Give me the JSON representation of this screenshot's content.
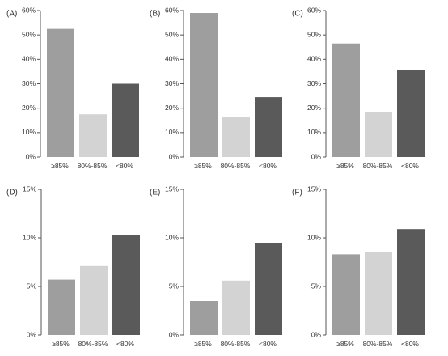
{
  "chart_data": [
    {
      "type": "bar",
      "panel_label": "(A)",
      "categories": [
        "≥85%",
        "80%-85%",
        "<80%"
      ],
      "values": [
        52.5,
        17.5,
        30.0
      ],
      "ylim": [
        0,
        60
      ],
      "yticks": [
        0,
        10,
        20,
        30,
        40,
        50,
        60
      ],
      "yticklabels": [
        "0%",
        "10%",
        "20%",
        "30%",
        "40%",
        "50%",
        "60%"
      ],
      "colors": [
        "#9e9e9e",
        "#d3d3d3",
        "#5a5a5a"
      ],
      "xlabel": "",
      "ylabel": "",
      "title": ""
    },
    {
      "type": "bar",
      "panel_label": "(B)",
      "categories": [
        "≥85%",
        "80%-85%",
        "<80%"
      ],
      "values": [
        59.0,
        16.5,
        24.5
      ],
      "ylim": [
        0,
        60
      ],
      "yticks": [
        0,
        10,
        20,
        30,
        40,
        50,
        60
      ],
      "yticklabels": [
        "0%",
        "10%",
        "20%",
        "30%",
        "40%",
        "50%",
        "60%"
      ],
      "colors": [
        "#9e9e9e",
        "#d3d3d3",
        "#5a5a5a"
      ],
      "xlabel": "",
      "ylabel": "",
      "title": ""
    },
    {
      "type": "bar",
      "panel_label": "(C)",
      "categories": [
        "≥85%",
        "80%-85%",
        "<80%"
      ],
      "values": [
        46.5,
        18.5,
        35.5
      ],
      "ylim": [
        0,
        60
      ],
      "yticks": [
        0,
        10,
        20,
        30,
        40,
        50,
        60
      ],
      "yticklabels": [
        "0%",
        "10%",
        "20%",
        "30%",
        "40%",
        "50%",
        "60%"
      ],
      "colors": [
        "#9e9e9e",
        "#d3d3d3",
        "#5a5a5a"
      ],
      "xlabel": "",
      "ylabel": "",
      "title": ""
    },
    {
      "type": "bar",
      "panel_label": "(D)",
      "categories": [
        "≥85%",
        "80%-85%",
        "<80%"
      ],
      "values": [
        5.7,
        7.1,
        10.3
      ],
      "ylim": [
        0,
        15
      ],
      "yticks": [
        0,
        5,
        10,
        15
      ],
      "yticklabels": [
        "0%",
        "5%",
        "10%",
        "15%"
      ],
      "colors": [
        "#9e9e9e",
        "#d3d3d3",
        "#5a5a5a"
      ],
      "xlabel": "",
      "ylabel": "",
      "title": ""
    },
    {
      "type": "bar",
      "panel_label": "(E)",
      "categories": [
        "≥85%",
        "80%-85%",
        "<80%"
      ],
      "values": [
        3.5,
        5.6,
        9.5
      ],
      "ylim": [
        0,
        15
      ],
      "yticks": [
        0,
        5,
        10,
        15
      ],
      "yticklabels": [
        "0%",
        "5%",
        "10%",
        "15%"
      ],
      "colors": [
        "#9e9e9e",
        "#d3d3d3",
        "#5a5a5a"
      ],
      "xlabel": "",
      "ylabel": "",
      "title": ""
    },
    {
      "type": "bar",
      "panel_label": "(F)",
      "categories": [
        "≥85%",
        "80%-85%",
        "<80%"
      ],
      "values": [
        8.3,
        8.5,
        10.9
      ],
      "ylim": [
        0,
        15
      ],
      "yticks": [
        0,
        5,
        10,
        15
      ],
      "yticklabels": [
        "0%",
        "5%",
        "10%",
        "15%"
      ],
      "colors": [
        "#9e9e9e",
        "#d3d3d3",
        "#5a5a5a"
      ],
      "xlabel": "",
      "ylabel": "",
      "title": ""
    }
  ]
}
